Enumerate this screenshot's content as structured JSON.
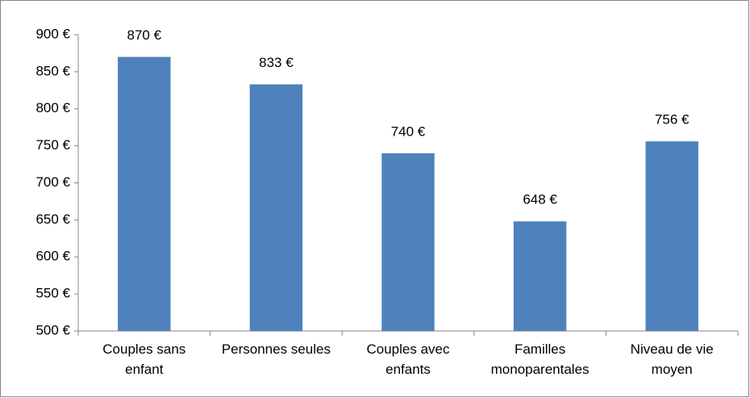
{
  "chart_data": {
    "type": "bar",
    "categories": [
      "Couples sans enfant",
      "Personnes seules",
      "Couples avec enfants",
      "Familles monoparentales",
      "Niveau de vie moyen"
    ],
    "values": [
      870,
      833,
      740,
      648,
      756
    ],
    "value_labels": [
      "870 €",
      "833 €",
      "740 €",
      "648 €",
      "756 €"
    ],
    "color": "#4f81bd",
    "ylim": [
      500,
      900
    ],
    "yticks": [
      {
        "value": 500,
        "label": "500 €"
      },
      {
        "value": 550,
        "label": "550 €"
      },
      {
        "value": 600,
        "label": "600 €"
      },
      {
        "value": 650,
        "label": "650 €"
      },
      {
        "value": 700,
        "label": "700 €"
      },
      {
        "value": 750,
        "label": "750 €"
      },
      {
        "value": 800,
        "label": "800 €"
      },
      {
        "value": 850,
        "label": "850 €"
      },
      {
        "value": 900,
        "label": "900 €"
      }
    ],
    "grid": false
  }
}
